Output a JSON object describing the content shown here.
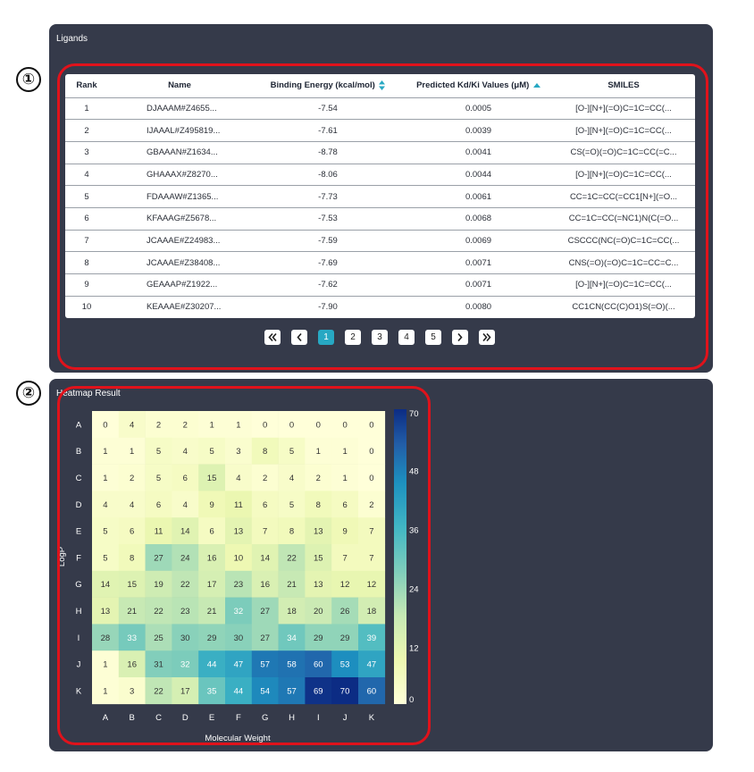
{
  "markers": {
    "one": "①",
    "two": "②"
  },
  "ligands": {
    "title": "Ligands",
    "columns": [
      "Rank",
      "Name",
      "Binding Energy (kcal/mol)",
      "Predicted Kd/Ki Values (μM)",
      "SMILES"
    ],
    "rows": [
      [
        "1",
        "DJAAAM#Z4655...",
        "-7.54",
        "0.0005",
        "[O-][N+](=O)C=1C=CC(..."
      ],
      [
        "2",
        "IJAAAL#Z495819...",
        "-7.61",
        "0.0039",
        "[O-][N+](=O)C=1C=CC(..."
      ],
      [
        "3",
        "GBAAAN#Z1634...",
        "-8.78",
        "0.0041",
        "CS(=O)(=O)C=1C=CC(=C..."
      ],
      [
        "4",
        "GHAAAX#Z8270...",
        "-8.06",
        "0.0044",
        "[O-][N+](=O)C=1C=CC(..."
      ],
      [
        "5",
        "FDAAAW#Z1365...",
        "-7.73",
        "0.0061",
        "CC=1C=CC(=CC1[N+](=O..."
      ],
      [
        "6",
        "KFAAAG#Z5678...",
        "-7.53",
        "0.0068",
        "CC=1C=CC(=NC1)N(C(=O..."
      ],
      [
        "7",
        "JCAAAE#Z24983...",
        "-7.59",
        "0.0069",
        "CSCCC(NC(=O)C=1C=CC(..."
      ],
      [
        "8",
        "JCAAAE#Z38408...",
        "-7.69",
        "0.0071",
        "CNS(=O)(=O)C=1C=CC=C..."
      ],
      [
        "9",
        "GEAAAP#Z1922...",
        "-7.62",
        "0.0071",
        "[O-][N+](=O)C=1C=CC(..."
      ],
      [
        "10",
        "KEAAAE#Z30207...",
        "-7.90",
        "0.0080",
        "CC1CN(CC(C)O1)S(=O)(..."
      ]
    ],
    "pagination": {
      "first_icon": "«",
      "prev_icon": "‹",
      "pages": [
        "1",
        "2",
        "3",
        "4",
        "5"
      ],
      "active_page": "1",
      "next_icon": "›",
      "last_icon": "»"
    }
  },
  "heatmap": {
    "title": "Heatmap Result",
    "colors": {
      "panel": "#353a4a",
      "highlight": "#e0121b",
      "accent": "#27a8c3"
    },
    "chart_data": {
      "type": "heatmap",
      "xlabel": "Molecular Weight",
      "ylabel": "LogP",
      "x_categories": [
        "A",
        "B",
        "C",
        "D",
        "E",
        "F",
        "G",
        "H",
        "I",
        "J",
        "K"
      ],
      "y_categories": [
        "A",
        "B",
        "C",
        "D",
        "E",
        "F",
        "G",
        "H",
        "I",
        "J",
        "K"
      ],
      "values": [
        [
          0,
          4,
          2,
          2,
          1,
          1,
          0,
          0,
          0,
          0,
          0
        ],
        [
          1,
          1,
          5,
          4,
          5,
          3,
          8,
          5,
          1,
          1,
          0
        ],
        [
          1,
          2,
          5,
          6,
          15,
          4,
          2,
          4,
          2,
          1,
          0
        ],
        [
          4,
          4,
          6,
          4,
          9,
          11,
          6,
          5,
          8,
          6,
          2
        ],
        [
          5,
          6,
          11,
          14,
          6,
          13,
          7,
          8,
          13,
          9,
          7
        ],
        [
          5,
          8,
          27,
          24,
          16,
          10,
          14,
          22,
          15,
          7,
          7
        ],
        [
          14,
          15,
          19,
          22,
          17,
          23,
          16,
          21,
          13,
          12,
          12
        ],
        [
          13,
          21,
          22,
          23,
          21,
          32,
          27,
          18,
          20,
          26,
          18
        ],
        [
          28,
          33,
          25,
          30,
          29,
          30,
          27,
          34,
          29,
          29,
          39
        ],
        [
          1,
          16,
          31,
          32,
          44,
          47,
          57,
          58,
          60,
          53,
          47
        ],
        [
          1,
          3,
          22,
          17,
          35,
          44,
          54,
          57,
          69,
          70,
          60
        ]
      ],
      "colorbar_ticks": [
        "0",
        "12",
        "24",
        "36",
        "48",
        "70"
      ],
      "colorbar_range": [
        0,
        70
      ],
      "colormap": "YlGnBu"
    }
  }
}
